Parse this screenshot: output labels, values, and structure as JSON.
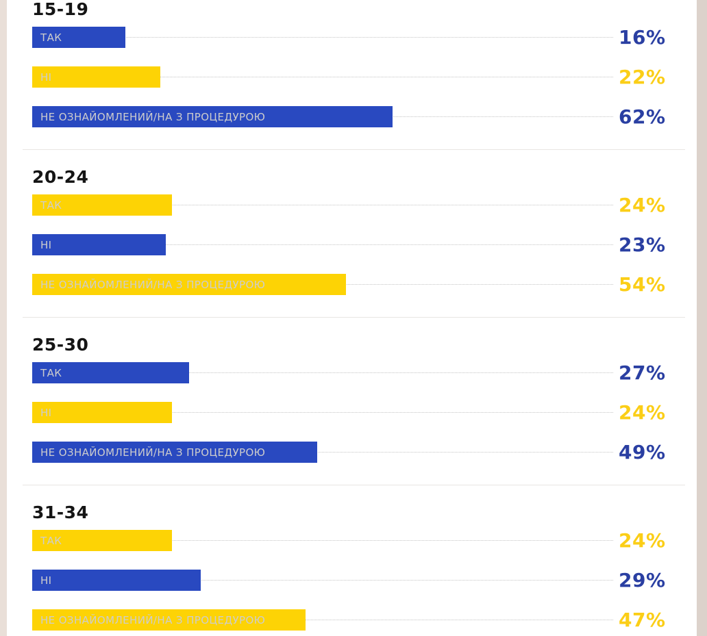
{
  "chart_data": {
    "type": "bar",
    "orientation": "horizontal",
    "unit": "%",
    "xlim": [
      0,
      100
    ],
    "grid": "off",
    "legend_position": "none",
    "groups": [
      {
        "title": "15-19",
        "bars": [
          {
            "label": "ТАК",
            "value": 16,
            "display": "16%",
            "color": "blue"
          },
          {
            "label": "НІ",
            "value": 22,
            "display": "22%",
            "color": "yellow"
          },
          {
            "label": "НЕ ОЗНАЙОМЛЕНИЙ/НА З ПРОЦЕДУРОЮ",
            "value": 62,
            "display": "62%",
            "color": "blue"
          }
        ]
      },
      {
        "title": "20-24",
        "bars": [
          {
            "label": "ТАК",
            "value": 24,
            "display": "24%",
            "color": "yellow"
          },
          {
            "label": "НІ",
            "value": 23,
            "display": "23%",
            "color": "blue"
          },
          {
            "label": "НЕ ОЗНАЙОМЛЕНИЙ/НА З ПРОЦЕДУРОЮ",
            "value": 54,
            "display": "54%",
            "color": "yellow"
          }
        ]
      },
      {
        "title": "25-30",
        "bars": [
          {
            "label": "ТАК",
            "value": 27,
            "display": "27%",
            "color": "blue"
          },
          {
            "label": "НІ",
            "value": 24,
            "display": "24%",
            "color": "yellow"
          },
          {
            "label": "НЕ ОЗНАЙОМЛЕНИЙ/НА З ПРОЦЕДУРОЮ",
            "value": 49,
            "display": "49%",
            "color": "blue"
          }
        ]
      },
      {
        "title": "31-34",
        "bars": [
          {
            "label": "ТАК",
            "value": 24,
            "display": "24%",
            "color": "yellow"
          },
          {
            "label": "НІ",
            "value": 29,
            "display": "29%",
            "color": "blue"
          },
          {
            "label": "НЕ ОЗНАЙОМЛЕНИЙ/НА З ПРОЦЕДУРОЮ",
            "value": 47,
            "display": "47%",
            "color": "yellow"
          }
        ]
      }
    ]
  },
  "colors": {
    "bar_blue": "#2949c0",
    "bar_yellow": "#fdd305",
    "percent_text_blue": "#2a3fa2",
    "percent_text_yellow": "#fbce17",
    "bar_label_text": "#cdcdcd",
    "title_text": "#151515",
    "divider": "#e8e5e2",
    "leader_line": "#c4c4c4",
    "left_strip": "#e9dfd8",
    "right_strip": "#dcd2cb",
    "background": "#ffffff"
  }
}
